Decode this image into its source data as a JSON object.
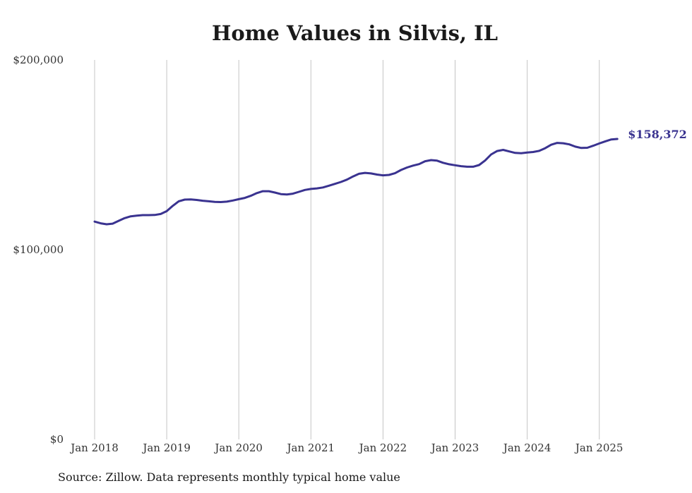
{
  "chart_data": {
    "type": "line",
    "title": "Home Values in Silvis, IL",
    "footnote": "Source: Zillow. Data represents monthly typical home value",
    "ylim": [
      0,
      200000
    ],
    "yticks": [
      0,
      100000,
      200000
    ],
    "ytick_labels": [
      "$0",
      "$100,000",
      "$200,000"
    ],
    "xticks": [
      "2018-01",
      "2019-01",
      "2020-01",
      "2021-01",
      "2022-01",
      "2023-01",
      "2024-01",
      "2025-01"
    ],
    "xtick_labels": [
      "Jan 2018",
      "Jan 2019",
      "Jan 2020",
      "Jan 2021",
      "Jan 2022",
      "Jan 2023",
      "Jan 2024",
      "Jan 2025"
    ],
    "xrange": [
      "2018-01",
      "2025-04"
    ],
    "grid": "vertical",
    "end_label": "$158,372",
    "line_color": "#3a3390",
    "series": [
      {
        "x": [
          "2018-01",
          "2018-02",
          "2018-03",
          "2018-04",
          "2018-05",
          "2018-06",
          "2018-07",
          "2018-08",
          "2018-09",
          "2018-10",
          "2018-11",
          "2018-12",
          "2019-01",
          "2019-02",
          "2019-03",
          "2019-04",
          "2019-05",
          "2019-06",
          "2019-07",
          "2019-08",
          "2019-09",
          "2019-10",
          "2019-11",
          "2019-12",
          "2020-01",
          "2020-02",
          "2020-03",
          "2020-04",
          "2020-05",
          "2020-06",
          "2020-07",
          "2020-08",
          "2020-09",
          "2020-10",
          "2020-11",
          "2020-12",
          "2021-01",
          "2021-02",
          "2021-03",
          "2021-04",
          "2021-05",
          "2021-06",
          "2021-07",
          "2021-08",
          "2021-09",
          "2021-10",
          "2021-11",
          "2021-12",
          "2022-01",
          "2022-02",
          "2022-03",
          "2022-04",
          "2022-05",
          "2022-06",
          "2022-07",
          "2022-08",
          "2022-09",
          "2022-10",
          "2022-11",
          "2022-12",
          "2023-01",
          "2023-02",
          "2023-03",
          "2023-04",
          "2023-05",
          "2023-06",
          "2023-07",
          "2023-08",
          "2023-09",
          "2023-10",
          "2023-11",
          "2023-12",
          "2024-01",
          "2024-02",
          "2024-03",
          "2024-04",
          "2024-05",
          "2024-06",
          "2024-07",
          "2024-08",
          "2024-09",
          "2024-10",
          "2024-11",
          "2024-12",
          "2025-01",
          "2025-02",
          "2025-03",
          "2025-04"
        ],
        "values": [
          114800,
          113900,
          113400,
          113700,
          115200,
          116600,
          117600,
          117900,
          118200,
          118200,
          118300,
          118800,
          120300,
          123100,
          125500,
          126400,
          126500,
          126200,
          125800,
          125500,
          125200,
          125100,
          125300,
          125900,
          126600,
          127300,
          128400,
          129800,
          130800,
          130800,
          130100,
          129300,
          129100,
          129500,
          130500,
          131500,
          132000,
          132300,
          132800,
          133700,
          134700,
          135700,
          136900,
          138600,
          140000,
          140500,
          140200,
          139600,
          139200,
          139400,
          140300,
          142000,
          143300,
          144300,
          145100,
          146600,
          147200,
          146900,
          145800,
          145000,
          144500,
          144000,
          143700,
          143700,
          144600,
          147000,
          150200,
          152000,
          152600,
          151800,
          151000,
          150800,
          151200,
          151500,
          152100,
          153500,
          155300,
          156300,
          156100,
          155500,
          154300,
          153600,
          153700,
          154800,
          156000,
          157100,
          158100,
          158372
        ]
      }
    ]
  }
}
